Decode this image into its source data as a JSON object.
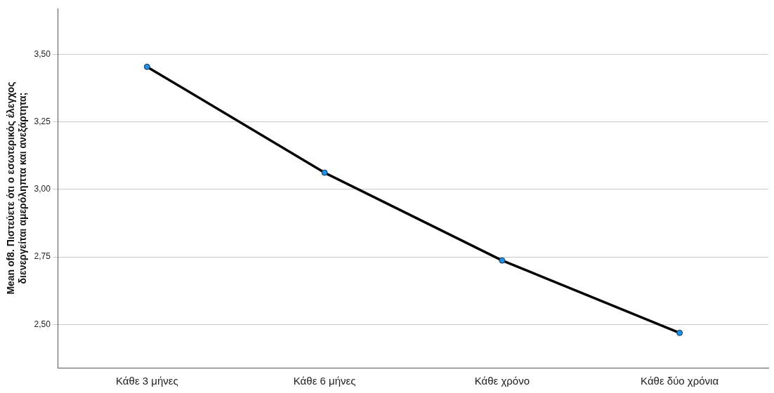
{
  "chart_data": {
    "type": "line",
    "ylabel": "Mean of8. Πιστεύετε ότι ο εσωτερικός έλεγχος διενεργείται αμερόληπτα και ανεξάρτητα;",
    "categories": [
      "Κάθε 3 μήνες",
      "Κάθε 6 μήνες",
      "Κάθε χρόνο",
      "Κάθε δύο χρόνια"
    ],
    "series": [
      {
        "color": "#000000",
        "values": [
          3.454,
          3.062,
          2.737,
          2.469
        ]
      }
    ],
    "marker": "circle",
    "line_style": "solid",
    "grid": "y",
    "ylim": [
      2.34,
      3.67
    ],
    "yticks": [
      {
        "value": 2.5,
        "label": "2,50"
      },
      {
        "value": 2.75,
        "label": "2,75"
      },
      {
        "value": 3.0,
        "label": "3,00"
      },
      {
        "value": 3.25,
        "label": "3,25"
      },
      {
        "value": 3.5,
        "label": "3,50"
      }
    ]
  }
}
